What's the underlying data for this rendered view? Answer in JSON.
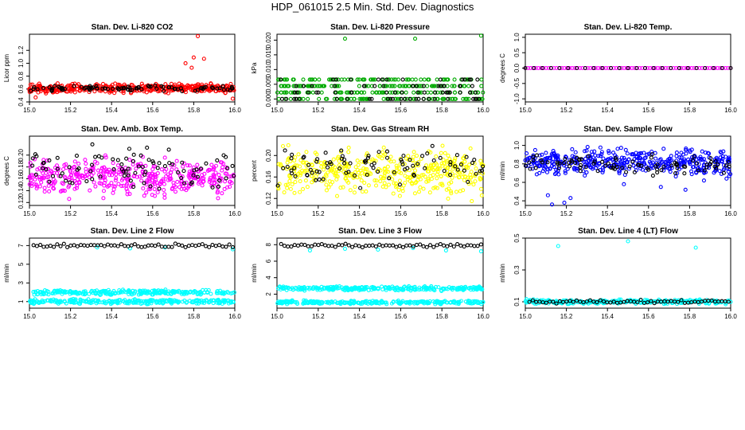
{
  "title": "HDP_061015  2.5 Min. Std. Dev. Diagnostics",
  "chart_data": [
    {
      "type": "scatter",
      "title": "Stan. Dev. Li-820 CO2",
      "xlabel": "",
      "ylabel": "Licor ppm",
      "xlim": [
        15.0,
        16.0
      ],
      "ylim": [
        0.4,
        1.45
      ],
      "xticks": [
        "15.0",
        "15.2",
        "15.4",
        "15.6",
        "15.8",
        "16.0"
      ],
      "yticks": [
        "0.4",
        "0.6",
        "0.8",
        "1.0",
        "1.2"
      ],
      "series": [
        {
          "name": "main",
          "color": "#ff0000",
          "values": {
            "gen": [
              [
                0.52,
                0.7
              ]
            ],
            "extra": [
              [
                15.82,
                1.42
              ],
              [
                15.76,
                1.0
              ],
              [
                15.8,
                1.09
              ],
              [
                15.85,
                1.07
              ],
              [
                15.79,
                0.93
              ],
              [
                15.99,
                0.45
              ],
              [
                15.03,
                0.47
              ]
            ]
          }
        },
        {
          "name": "overlay",
          "color": "#000000",
          "values": {
            "gen": [
              [
                0.55,
                0.67
              ]
            ]
          }
        }
      ]
    },
    {
      "type": "scatter",
      "title": "Stan. Dev. Li-820 Pressure",
      "xlabel": "",
      "ylabel": "kPa",
      "xlim": [
        15.0,
        16.0
      ],
      "ylim": [
        -0.001,
        0.022
      ],
      "xticks": [
        "15.0",
        "15.2",
        "15.4",
        "15.6",
        "15.8",
        "16.0"
      ],
      "yticks": [
        "0.000",
        "0.005",
        "0.010",
        "0.015",
        "0.020"
      ],
      "series": [
        {
          "name": "main",
          "color": "#00aa00",
          "values": {
            "levels": [
              0,
              0.0022,
              0.0044,
              0.0066
            ],
            "extra": [
              [
                15.33,
                0.0205
              ],
              [
                15.67,
                0.0205
              ],
              [
                15.99,
                0.0215
              ]
            ]
          }
        },
        {
          "name": "overlay",
          "color": "#000000",
          "values": {
            "levels": [
              0,
              0.0022,
              0.0044,
              0.0066
            ]
          }
        }
      ]
    },
    {
      "type": "scatter",
      "title": "Stan. Dev. Li-820 Temp.",
      "xlabel": "",
      "ylabel": "degrees C",
      "xlim": [
        15.0,
        16.0
      ],
      "ylim": [
        -1.1,
        1.1
      ],
      "xticks": [
        "15.0",
        "15.2",
        "15.4",
        "15.6",
        "15.8",
        "16.0"
      ],
      "yticks": [
        "-1.0",
        "-0.5",
        "0.0",
        "0.5",
        "1.0"
      ],
      "series": [
        {
          "name": "main",
          "color": "#ff00ff",
          "values": {
            "const": 0
          }
        },
        {
          "name": "overlay",
          "color": "#000000",
          "values": {
            "const": 0
          }
        }
      ]
    },
    {
      "type": "scatter",
      "title": "Stan. Dev. Amb. Box Temp.",
      "xlabel": "",
      "ylabel": "degrees C",
      "xlim": [
        15.0,
        16.0
      ],
      "ylim": [
        0.115,
        0.232
      ],
      "xticks": [
        "15.0",
        "15.2",
        "15.4",
        "15.6",
        "15.8",
        "16.0"
      ],
      "yticks": [
        "0.12",
        "0.14",
        "0.16",
        "0.18",
        "0.20"
      ],
      "series": [
        {
          "name": "main",
          "color": "#ff00ff",
          "values": {
            "gen": [
              [
                0.12,
                0.205
              ]
            ]
          }
        },
        {
          "name": "overlay",
          "color": "#000000",
          "values": {
            "gen": [
              [
                0.13,
                0.225
              ]
            ]
          }
        }
      ]
    },
    {
      "type": "scatter",
      "title": "Stan. Dev. Gas Stream RH",
      "xlabel": "",
      "ylabel": "percent",
      "xlim": [
        15.0,
        16.0
      ],
      "ylim": [
        0.107,
        0.236
      ],
      "xticks": [
        "15.0",
        "15.2",
        "15.4",
        "15.6",
        "15.8",
        "16.0"
      ],
      "yticks": [
        "0.12",
        "0.16",
        "0.20"
      ],
      "series": [
        {
          "name": "main",
          "color": "#ffff00",
          "values": {
            "gen": [
              [
                0.11,
                0.23
              ]
            ]
          }
        },
        {
          "name": "overlay",
          "color": "#000000",
          "values": {
            "gen": [
              [
                0.13,
                0.235
              ]
            ]
          }
        }
      ]
    },
    {
      "type": "scatter",
      "title": "Stan. Dev. Sample Flow",
      "xlabel": "",
      "ylabel": "ml/min",
      "xlim": [
        15.0,
        16.0
      ],
      "ylim": [
        0.35,
        1.1
      ],
      "xticks": [
        "15.0",
        "15.2",
        "15.4",
        "15.6",
        "15.8",
        "16.0"
      ],
      "yticks": [
        "0.4",
        "0.6",
        "0.8",
        "1.0"
      ],
      "series": [
        {
          "name": "main",
          "color": "#0000ff",
          "values": {
            "gen": [
              [
                0.62,
                1.02
              ]
            ],
            "extra": [
              [
                15.13,
                0.36
              ],
              [
                15.19,
                0.38
              ],
              [
                15.11,
                0.46
              ],
              [
                15.22,
                0.43
              ],
              [
                15.48,
                0.58
              ],
              [
                15.66,
                0.55
              ],
              [
                15.78,
                0.52
              ],
              [
                15.87,
                0.62
              ]
            ]
          }
        },
        {
          "name": "overlay",
          "color": "#000000",
          "values": {
            "gen": [
              [
                0.65,
                0.92
              ]
            ]
          }
        }
      ]
    },
    {
      "type": "scatter",
      "title": "Stan. Dev. Line 2 Flow",
      "xlabel": "",
      "ylabel": "ml/min",
      "xlim": [
        15.0,
        16.0
      ],
      "ylim": [
        0.3,
        7.8
      ],
      "xticks": [
        "15.0",
        "15.2",
        "15.4",
        "15.6",
        "15.8",
        "16.0"
      ],
      "yticks": [
        "1",
        "3",
        "5",
        "7"
      ],
      "series": [
        {
          "name": "main",
          "color": "#00ffff",
          "values": {
            "bands": [
              [
                1.0,
                0.35
              ],
              [
                2.0,
                0.35
              ]
            ],
            "extra": [
              [
                15.33,
                6.8
              ],
              [
                15.49,
                6.7
              ],
              [
                15.66,
                6.8
              ],
              [
                15.99,
                6.6
              ]
            ]
          }
        },
        {
          "name": "overlay",
          "color": "#000000",
          "values": {
            "band_top": [
              7.0,
              0.3
            ]
          }
        }
      ]
    },
    {
      "type": "scatter",
      "title": "Stan. Dev. Line 3 Flow",
      "xlabel": "",
      "ylabel": "ml/min",
      "xlim": [
        15.0,
        16.0
      ],
      "ylim": [
        0.3,
        8.8
      ],
      "xticks": [
        "15.0",
        "15.2",
        "15.4",
        "15.6",
        "15.8",
        "16.0"
      ],
      "yticks": [
        "2",
        "4",
        "6",
        "8"
      ],
      "series": [
        {
          "name": "main",
          "color": "#00ffff",
          "values": {
            "bands": [
              [
                1.0,
                0.3
              ],
              [
                2.7,
                0.35
              ]
            ],
            "extra": [
              [
                15.16,
                7.3
              ],
              [
                15.33,
                7.5
              ],
              [
                15.49,
                7.4
              ],
              [
                15.66,
                7.6
              ],
              [
                15.82,
                7.3
              ],
              [
                15.99,
                7.2
              ]
            ]
          }
        },
        {
          "name": "overlay",
          "color": "#000000",
          "values": {
            "band_top": [
              7.9,
              0.3
            ]
          }
        }
      ]
    },
    {
      "type": "scatter",
      "title": "Stan. Dev. Line 4 (LT) Flow",
      "xlabel": "",
      "ylabel": "ml/min",
      "xlim": [
        15.0,
        16.0
      ],
      "ylim": [
        0.06,
        0.5
      ],
      "xticks": [
        "15.0",
        "15.2",
        "15.4",
        "15.6",
        "15.8",
        "16.0"
      ],
      "yticks": [
        "0.1",
        "0.3",
        "0.5"
      ],
      "series": [
        {
          "name": "main",
          "color": "#00ffff",
          "values": {
            "bands": [
              [
                0.1,
                0.02
              ]
            ],
            "extra": [
              [
                15.16,
                0.45
              ],
              [
                15.5,
                0.48
              ],
              [
                15.83,
                0.44
              ]
            ]
          }
        },
        {
          "name": "overlay",
          "color": "#000000",
          "values": {
            "band_top": [
              0.1,
              0.015
            ]
          }
        }
      ]
    }
  ]
}
